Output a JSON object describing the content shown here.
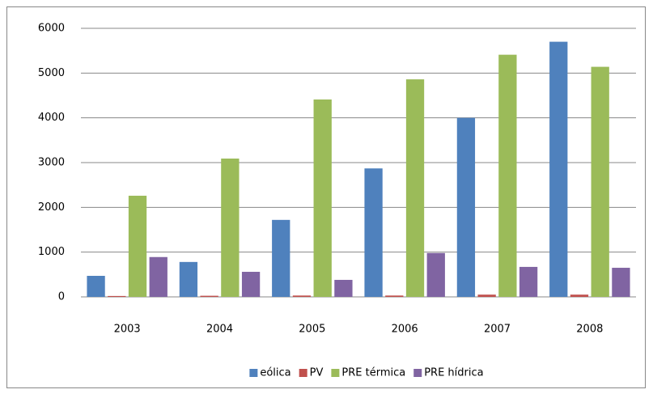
{
  "chart_data": {
    "type": "bar",
    "categories": [
      "2003",
      "2004",
      "2005",
      "2006",
      "2007",
      "2008"
    ],
    "series": [
      {
        "name": "eólica",
        "color": "#4f81bd",
        "values": [
          470,
          780,
          1720,
          2870,
          4000,
          5700
        ]
      },
      {
        "name": "PV",
        "color": "#c0504d",
        "values": [
          20,
          25,
          30,
          30,
          50,
          50
        ]
      },
      {
        "name": "PRE térmica",
        "color": "#9bbb59",
        "values": [
          2260,
          3090,
          4410,
          4860,
          5410,
          5140
        ]
      },
      {
        "name": "PRE hídrica",
        "color": "#8064a2",
        "values": [
          890,
          560,
          380,
          980,
          670,
          650
        ]
      }
    ],
    "ylim": [
      0,
      6000
    ],
    "yticks": [
      0,
      1000,
      2000,
      3000,
      4000,
      5000,
      6000
    ],
    "grid": true,
    "legend": "bottom"
  }
}
